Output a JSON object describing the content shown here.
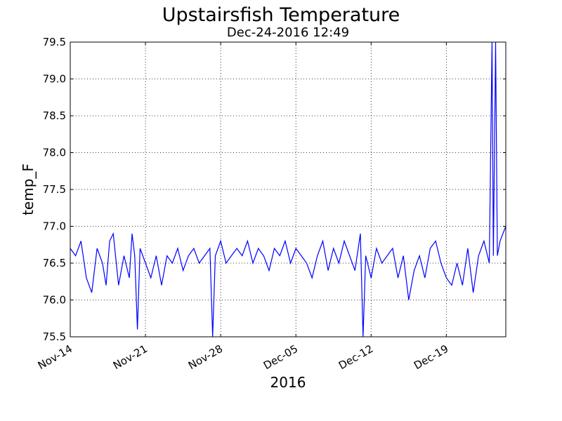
{
  "chart_data": {
    "type": "line",
    "title": "Upstairsfish Temperature",
    "subtitle": "Dec-24-2016 12:49",
    "xlabel": "2016",
    "ylabel": "temp_F",
    "x_ticks": [
      {
        "date": "2016-11-14",
        "label": "Nov-14"
      },
      {
        "date": "2016-11-21",
        "label": "Nov-21"
      },
      {
        "date": "2016-11-28",
        "label": "Nov-28"
      },
      {
        "date": "2016-12-05",
        "label": "Dec-05"
      },
      {
        "date": "2016-12-12",
        "label": "Dec-12"
      },
      {
        "date": "2016-12-19",
        "label": "Dec-19"
      }
    ],
    "xlim": [
      "2016-11-14T00:00",
      "2016-12-24T12:49"
    ],
    "ylim": [
      75.5,
      79.5
    ],
    "y_ticks": [
      75.5,
      76.0,
      76.5,
      77.0,
      77.5,
      78.0,
      78.5,
      79.0,
      79.5
    ],
    "y_tick_labels": [
      "75.5",
      "76.0",
      "76.5",
      "77.0",
      "77.5",
      "78.0",
      "78.5",
      "79.0",
      "79.5"
    ],
    "grid": true,
    "series": [
      {
        "color": "#0000ff",
        "points": [
          [
            "2016-11-14T00:00",
            76.7
          ],
          [
            "2016-11-14T12:00",
            76.6
          ],
          [
            "2016-11-15T00:00",
            76.8
          ],
          [
            "2016-11-15T12:00",
            76.3
          ],
          [
            "2016-11-16T00:00",
            76.1
          ],
          [
            "2016-11-16T12:00",
            76.7
          ],
          [
            "2016-11-17T00:00",
            76.5
          ],
          [
            "2016-11-17T08:00",
            76.2
          ],
          [
            "2016-11-17T16:00",
            76.8
          ],
          [
            "2016-11-18T00:00",
            76.9
          ],
          [
            "2016-11-18T12:00",
            76.2
          ],
          [
            "2016-11-19T00:00",
            76.6
          ],
          [
            "2016-11-19T12:00",
            76.3
          ],
          [
            "2016-11-19T18:00",
            76.9
          ],
          [
            "2016-11-20T00:00",
            76.6
          ],
          [
            "2016-11-20T06:00",
            75.6
          ],
          [
            "2016-11-20T12:00",
            76.7
          ],
          [
            "2016-11-21T00:00",
            76.5
          ],
          [
            "2016-11-21T12:00",
            76.3
          ],
          [
            "2016-11-22T00:00",
            76.6
          ],
          [
            "2016-11-22T12:00",
            76.2
          ],
          [
            "2016-11-23T00:00",
            76.6
          ],
          [
            "2016-11-23T12:00",
            76.5
          ],
          [
            "2016-11-24T00:00",
            76.7
          ],
          [
            "2016-11-24T12:00",
            76.4
          ],
          [
            "2016-11-25T00:00",
            76.6
          ],
          [
            "2016-11-25T12:00",
            76.7
          ],
          [
            "2016-11-26T00:00",
            76.5
          ],
          [
            "2016-11-26T12:00",
            76.6
          ],
          [
            "2016-11-27T00:00",
            76.7
          ],
          [
            "2016-11-27T06:00",
            75.5
          ],
          [
            "2016-11-27T12:00",
            76.6
          ],
          [
            "2016-11-28T00:00",
            76.8
          ],
          [
            "2016-11-28T12:00",
            76.5
          ],
          [
            "2016-11-29T00:00",
            76.6
          ],
          [
            "2016-11-29T12:00",
            76.7
          ],
          [
            "2016-11-30T00:00",
            76.6
          ],
          [
            "2016-11-30T12:00",
            76.8
          ],
          [
            "2016-12-01T00:00",
            76.5
          ],
          [
            "2016-12-01T12:00",
            76.7
          ],
          [
            "2016-12-02T00:00",
            76.6
          ],
          [
            "2016-12-02T12:00",
            76.4
          ],
          [
            "2016-12-03T00:00",
            76.7
          ],
          [
            "2016-12-03T12:00",
            76.6
          ],
          [
            "2016-12-04T00:00",
            76.8
          ],
          [
            "2016-12-04T12:00",
            76.5
          ],
          [
            "2016-12-05T00:00",
            76.7
          ],
          [
            "2016-12-05T12:00",
            76.6
          ],
          [
            "2016-12-06T00:00",
            76.5
          ],
          [
            "2016-12-06T12:00",
            76.3
          ],
          [
            "2016-12-07T00:00",
            76.6
          ],
          [
            "2016-12-07T12:00",
            76.8
          ],
          [
            "2016-12-08T00:00",
            76.4
          ],
          [
            "2016-12-08T12:00",
            76.7
          ],
          [
            "2016-12-09T00:00",
            76.5
          ],
          [
            "2016-12-09T12:00",
            76.8
          ],
          [
            "2016-12-10T00:00",
            76.6
          ],
          [
            "2016-12-10T12:00",
            76.4
          ],
          [
            "2016-12-11T00:00",
            76.9
          ],
          [
            "2016-12-11T06:00",
            75.5
          ],
          [
            "2016-12-11T12:00",
            76.6
          ],
          [
            "2016-12-12T00:00",
            76.3
          ],
          [
            "2016-12-12T12:00",
            76.7
          ],
          [
            "2016-12-13T00:00",
            76.5
          ],
          [
            "2016-12-13T12:00",
            76.6
          ],
          [
            "2016-12-14T00:00",
            76.7
          ],
          [
            "2016-12-14T12:00",
            76.3
          ],
          [
            "2016-12-15T00:00",
            76.6
          ],
          [
            "2016-12-15T12:00",
            76.0
          ],
          [
            "2016-12-16T00:00",
            76.4
          ],
          [
            "2016-12-16T12:00",
            76.6
          ],
          [
            "2016-12-17T00:00",
            76.3
          ],
          [
            "2016-12-17T12:00",
            76.7
          ],
          [
            "2016-12-18T00:00",
            76.8
          ],
          [
            "2016-12-18T12:00",
            76.5
          ],
          [
            "2016-12-19T00:00",
            76.3
          ],
          [
            "2016-12-19T12:00",
            76.2
          ],
          [
            "2016-12-20T00:00",
            76.5
          ],
          [
            "2016-12-20T12:00",
            76.2
          ],
          [
            "2016-12-21T00:00",
            76.7
          ],
          [
            "2016-12-21T12:00",
            76.1
          ],
          [
            "2016-12-22T00:00",
            76.6
          ],
          [
            "2016-12-22T12:00",
            76.8
          ],
          [
            "2016-12-23T00:00",
            76.5
          ],
          [
            "2016-12-23T06:00",
            79.5
          ],
          [
            "2016-12-23T09:00",
            76.6
          ],
          [
            "2016-12-23T14:00",
            79.5
          ],
          [
            "2016-12-23T18:00",
            76.6
          ],
          [
            "2016-12-24T00:00",
            76.8
          ],
          [
            "2016-12-24T12:49",
            77.0
          ]
        ]
      }
    ]
  }
}
